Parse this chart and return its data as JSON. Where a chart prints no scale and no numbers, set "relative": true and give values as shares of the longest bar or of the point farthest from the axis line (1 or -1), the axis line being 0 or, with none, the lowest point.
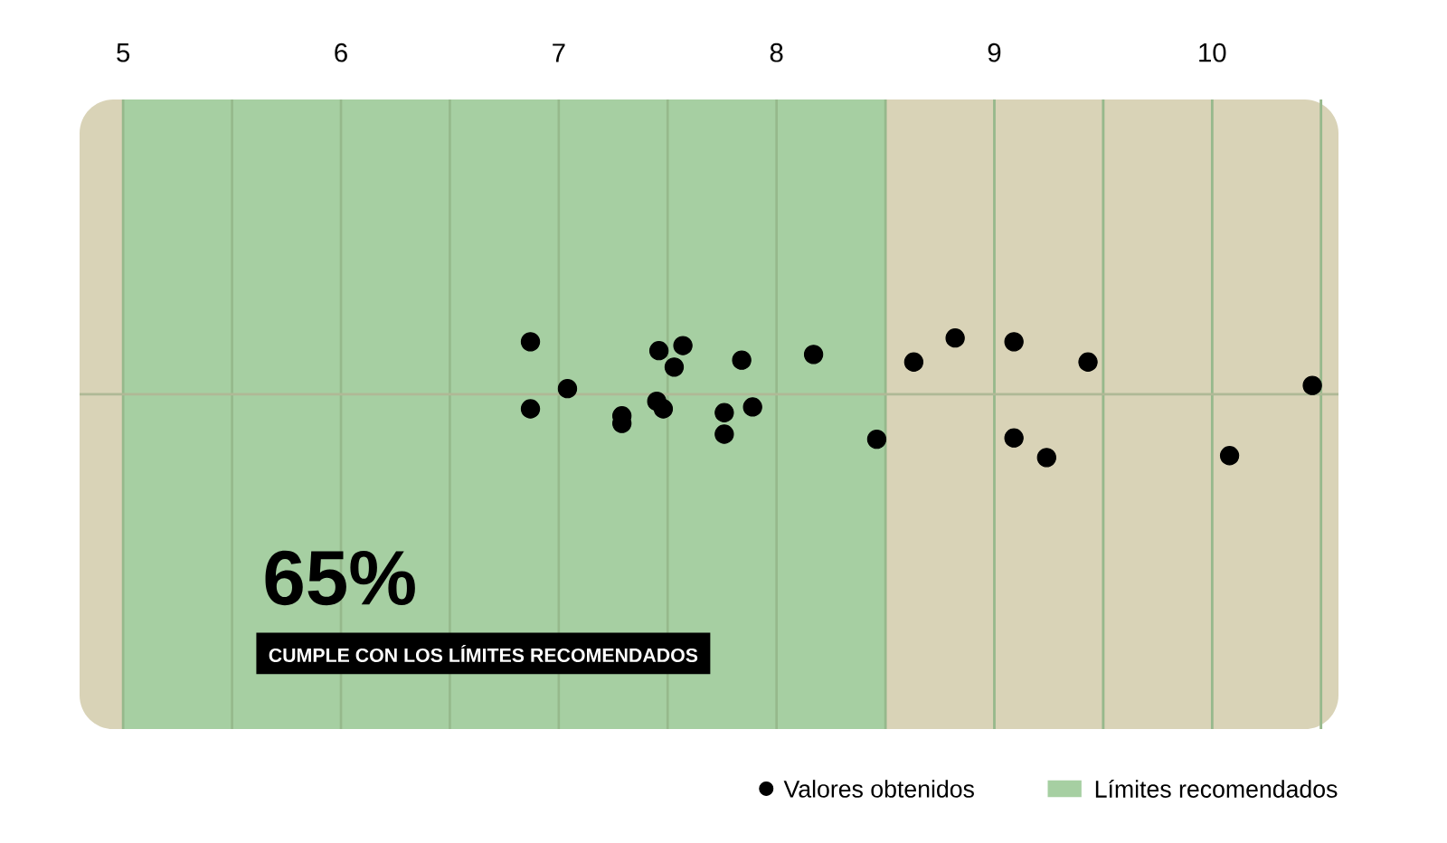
{
  "chart_data": {
    "type": "scatter",
    "relative": true,
    "xlim": [
      4.8,
      10.58
    ],
    "xticks": [
      5,
      {
        "value": 5.5,
        "label": null
      },
      6,
      {
        "value": 6.5,
        "label": null
      },
      7,
      {
        "value": 7.5,
        "label": null
      },
      8,
      {
        "value": 8.5,
        "label": null
      },
      9,
      {
        "value": 9.5,
        "label": null
      },
      10,
      {
        "value": 10.5,
        "label": null
      }
    ],
    "grid": "x",
    "marker": "circle",
    "legend": "bottom right",
    "series": [
      {
        "name": "Valores obtenidos",
        "color": "#000000",
        "x": [
          6.87,
          6.87,
          7.04,
          7.29,
          7.29,
          7.46,
          7.45,
          7.48,
          7.53,
          7.57,
          7.76,
          7.76,
          7.84,
          7.89,
          8.17,
          8.46,
          8.63,
          8.82,
          9.09,
          9.09,
          9.24,
          9.43,
          10.08,
          10.46
        ],
        "values": [
          0.83,
          -0.23,
          0.09,
          -0.34,
          -0.46,
          0.69,
          -0.11,
          -0.23,
          0.43,
          0.77,
          -0.29,
          -0.63,
          0.54,
          -0.2,
          0.63,
          -0.71,
          0.51,
          0.89,
          0.83,
          -0.69,
          -1.0,
          0.51,
          -0.97,
          0.14
        ]
      }
    ],
    "bands": [
      {
        "axis": "x",
        "from": 5,
        "to": 8.5,
        "label": "Límites recomendados",
        "color": "#a6cfa2"
      }
    ],
    "annotations": [
      "65%",
      "CUMPLE CON LOS LÍMITES RECOMENDADOS"
    ]
  }
}
